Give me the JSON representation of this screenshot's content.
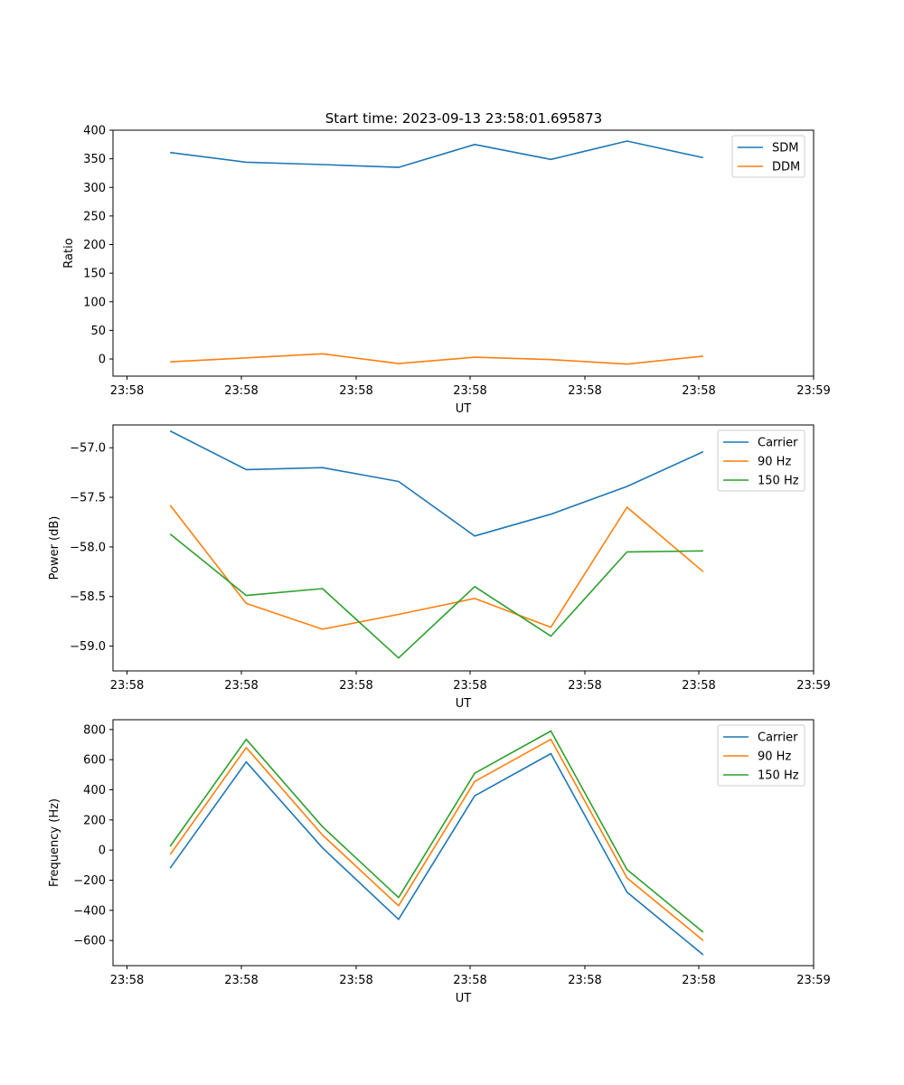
{
  "figure": {
    "title": "Start time: 2023-09-13 23:58:01.695873"
  },
  "chart_data": [
    {
      "type": "line",
      "title": "Start time: 2023-09-13 23:58:01.695873",
      "xlabel": "UT",
      "ylabel": "Ratio",
      "x_ticks": [
        "23:58",
        "23:58",
        "23:58",
        "23:58",
        "23:58",
        "23:58",
        "23:59"
      ],
      "x": [
        1,
        2,
        3,
        4,
        5,
        6,
        7,
        8
      ],
      "xlim": [
        0.25,
        9.45
      ],
      "ylim": [
        -30,
        400
      ],
      "y_ticks": [
        0,
        50,
        100,
        150,
        200,
        250,
        300,
        350,
        400
      ],
      "legend": "top-right",
      "series": [
        {
          "name": "SDM",
          "color": "#1f77b4",
          "values": [
            361,
            344,
            340,
            335,
            375,
            349,
            381,
            352
          ]
        },
        {
          "name": "DDM",
          "color": "#ff7f0e",
          "values": [
            -5,
            2,
            9,
            -8,
            3,
            -1,
            -9,
            5
          ]
        }
      ]
    },
    {
      "type": "line",
      "title": "",
      "xlabel": "UT",
      "ylabel": "Power (dB)",
      "x_ticks": [
        "23:58",
        "23:58",
        "23:58",
        "23:58",
        "23:58",
        "23:58",
        "23:59"
      ],
      "x": [
        1,
        2,
        3,
        4,
        5,
        6,
        7,
        8
      ],
      "xlim": [
        0.25,
        9.45
      ],
      "ylim": [
        -59.25,
        -56.77
      ],
      "y_ticks": [
        -59.0,
        -58.5,
        -58.0,
        -57.5,
        -57.0
      ],
      "y_tick_labels": [
        "−59.0",
        "−58.5",
        "−58.0",
        "−57.5",
        "−57.0"
      ],
      "legend": "top-right",
      "series": [
        {
          "name": "Carrier",
          "color": "#1f77b4",
          "values": [
            -56.83,
            -57.22,
            -57.2,
            -57.34,
            -57.89,
            -57.67,
            -57.39,
            -57.04
          ]
        },
        {
          "name": "90 Hz",
          "color": "#ff7f0e",
          "values": [
            -57.58,
            -58.57,
            -58.83,
            -58.68,
            -58.52,
            -58.81,
            -57.6,
            -58.25
          ]
        },
        {
          "name": "150 Hz",
          "color": "#2ca02c",
          "values": [
            -57.87,
            -58.49,
            -58.42,
            -59.12,
            -58.4,
            -58.9,
            -58.05,
            -58.04
          ]
        }
      ]
    },
    {
      "type": "line",
      "title": "",
      "xlabel": "UT",
      "ylabel": "Frequency (Hz)",
      "x_ticks": [
        "23:58",
        "23:58",
        "23:58",
        "23:58",
        "23:58",
        "23:58",
        "23:59"
      ],
      "x": [
        1,
        2,
        3,
        4,
        5,
        6,
        7,
        8
      ],
      "xlim": [
        0.25,
        9.45
      ],
      "ylim": [
        -767,
        865
      ],
      "y_ticks": [
        -600,
        -400,
        -200,
        0,
        200,
        400,
        600,
        800
      ],
      "y_tick_labels": [
        "−600",
        "−400",
        "−200",
        "0",
        "200",
        "400",
        "600",
        "800"
      ],
      "legend": "top-right",
      "series": [
        {
          "name": "Carrier",
          "color": "#1f77b4",
          "values": [
            -120,
            585,
            15,
            -460,
            360,
            640,
            -280,
            -695
          ]
        },
        {
          "name": "90 Hz",
          "color": "#ff7f0e",
          "values": [
            -30,
            680,
            100,
            -370,
            455,
            735,
            -185,
            -600
          ]
        },
        {
          "name": "150 Hz",
          "color": "#2ca02c",
          "values": [
            25,
            735,
            155,
            -315,
            510,
            790,
            -130,
            -545
          ]
        }
      ]
    }
  ]
}
